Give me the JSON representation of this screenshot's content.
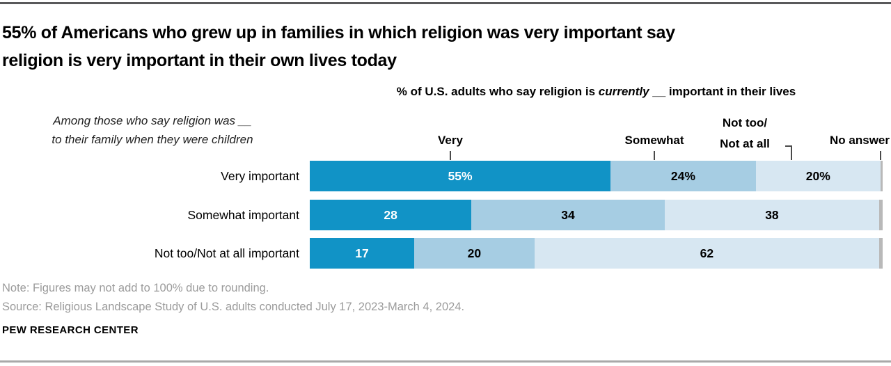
{
  "page": {
    "title_lines": [
      "55% of Americans who grew up in families in which religion was very important say",
      "religion is very important in their own lives today"
    ],
    "subtitle": {
      "prefix": "% of U.S. adults who say religion is ",
      "emphasis": "currently",
      "suffix": " __ important in their lives"
    },
    "side_note_lines": [
      "Among those who say religion was __",
      "to their family when they were children"
    ],
    "note": "Note: Figures may not add to 100% due to rounding.",
    "source": "Source: Religious Landscape Study of U.S. adults conducted July 17, 2023-March 4, 2024.",
    "footer": "PEW RESEARCH CENTER"
  },
  "headers": {
    "very": "Very",
    "somewhat": "Somewhat",
    "not_too_line1": "Not too/",
    "not_too_line2": "Not at all",
    "no_answer": "No answer"
  },
  "chart_data": {
    "type": "bar",
    "orientation": "horizontal_stacked",
    "title": "% of U.S. adults who say religion is currently __ important in their lives",
    "categories": [
      "Very important",
      "Somewhat important",
      "Not too/Not at all important"
    ],
    "series": [
      {
        "name": "Very",
        "values": [
          55,
          28,
          17
        ]
      },
      {
        "name": "Somewhat",
        "values": [
          24,
          34,
          20
        ]
      },
      {
        "name": "Not too/Not at all",
        "values": [
          20,
          38,
          62
        ]
      },
      {
        "name": "No answer",
        "values": [],
        "rendered_as": "thin unlabeled gray sliver at right end of each bar"
      }
    ],
    "value_suffix_first_row": "%",
    "colors": {
      "very": "#1193c6",
      "somewhat": "#a6cde3",
      "not_too": "#d7e7f2",
      "no_answer": "#b9b9b9"
    },
    "legend_position": "top",
    "grid": false,
    "xlim": [
      0,
      100
    ]
  }
}
